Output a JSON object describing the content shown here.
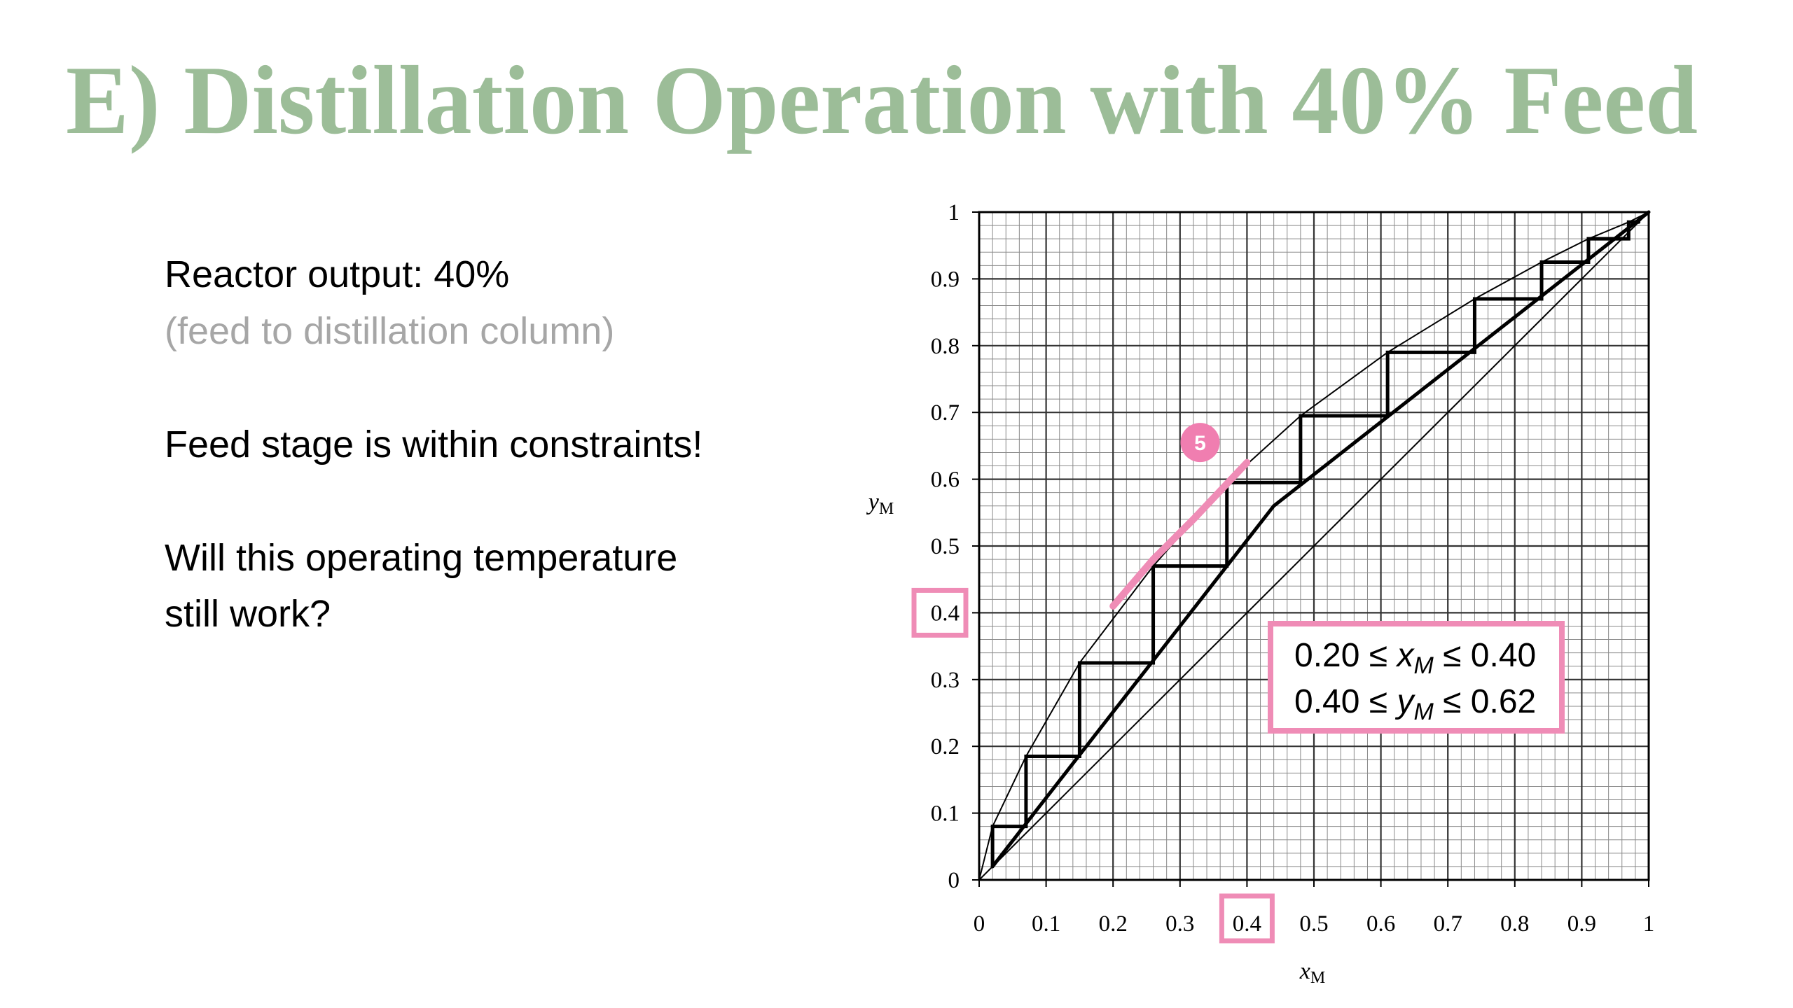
{
  "slide": {
    "title": "E) Distillation Operation with 40% Feed",
    "lines": [
      "Reactor output: 40%",
      "(feed to distillation column)",
      "Feed stage is within constraints!",
      "Will this operating temperature",
      "still work?"
    ]
  },
  "chart_data": {
    "type": "line",
    "x_label": {
      "text": "x",
      "sub": "M"
    },
    "y_label": {
      "text": "y",
      "sub": "M"
    },
    "xlim": [
      0,
      1
    ],
    "ylim": [
      0,
      1
    ],
    "xticks": [
      0,
      0.1,
      0.2,
      0.3,
      0.4,
      0.5,
      0.6,
      0.7,
      0.8,
      0.9,
      1
    ],
    "yticks": [
      0,
      0.1,
      0.2,
      0.3,
      0.4,
      0.5,
      0.6,
      0.7,
      0.8,
      0.9,
      1
    ],
    "grid": true,
    "minor_grid_step": 0.02,
    "highlight_xtick": 0.4,
    "highlight_ytick": 0.4,
    "highlight_color": "#ef8cb6",
    "series": [
      {
        "color": "#000000",
        "width": 2,
        "x": [
          0,
          1
        ],
        "values": [
          0,
          1
        ]
      },
      {
        "color": "#000000",
        "width": 2,
        "x": [
          0,
          0.02,
          0.07,
          0.15,
          0.26,
          0.37,
          0.48,
          0.61,
          0.74,
          0.84,
          0.91,
          0.97,
          1
        ],
        "values": [
          0,
          0.08,
          0.185,
          0.325,
          0.47,
          0.595,
          0.695,
          0.79,
          0.87,
          0.925,
          0.96,
          0.985,
          1
        ]
      },
      {
        "color": "#000000",
        "width": 5,
        "x": [
          0.02,
          0.44,
          1
        ],
        "values": [
          0.02,
          0.56,
          1
        ]
      },
      {
        "color": "#000000",
        "width": 5,
        "x": [
          0.02,
          0.02,
          0.07,
          0.07,
          0.15,
          0.15,
          0.26,
          0.26,
          0.37,
          0.37,
          0.48,
          0.48,
          0.61,
          0.61,
          0.74,
          0.74,
          0.84,
          0.84,
          0.91,
          0.91,
          0.97,
          0.97,
          0.985
        ],
        "values": [
          0.02,
          0.08,
          0.08,
          0.185,
          0.185,
          0.325,
          0.325,
          0.47,
          0.47,
          0.595,
          0.595,
          0.695,
          0.695,
          0.79,
          0.79,
          0.87,
          0.87,
          0.925,
          0.925,
          0.96,
          0.96,
          0.985,
          0.985
        ]
      },
      {
        "color": "#ef8cb6",
        "width": 10,
        "x": [
          0.2,
          0.26,
          0.32,
          0.4
        ],
        "values": [
          0.41,
          0.48,
          0.54,
          0.625
        ]
      }
    ],
    "badge": {
      "text": "5",
      "color": "#f07eb0",
      "x": 0.33,
      "y": 0.655
    },
    "constraint_box": [
      {
        "pre": "0.20 ≤ ",
        "var": "x",
        "sub": "M",
        "post": " ≤ 0.40"
      },
      {
        "pre": "0.40 ≤ ",
        "var": "y",
        "sub": "M",
        "post": " ≤ 0.62"
      }
    ]
  }
}
